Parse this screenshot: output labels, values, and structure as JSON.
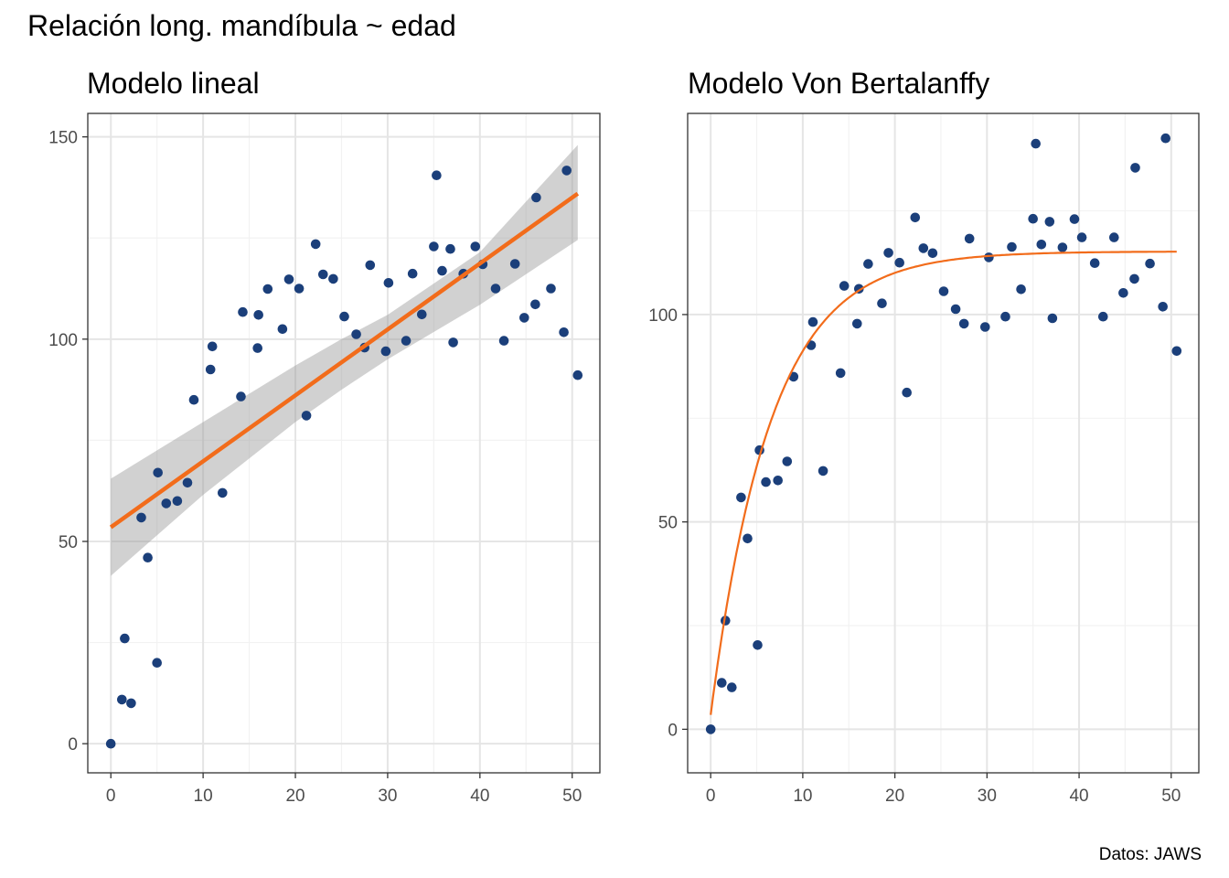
{
  "figure": {
    "title": "Relación long. mandíbula ~ edad",
    "caption": "Datos: JAWS"
  },
  "colors": {
    "points": "#1b3f7a",
    "fit_line": "#f26c1b",
    "ci_band": "#999999",
    "grid_major": "#e5e5e5",
    "grid_minor": "#f2f2f2",
    "panel_border": "#333333",
    "tick_text": "#4d4d4d"
  },
  "chart_data": [
    {
      "type": "scatter",
      "title": "Modelo lineal",
      "xlabel": "",
      "ylabel": "",
      "xlim": [
        -2.5,
        53
      ],
      "ylim": [
        -7.2,
        155.8
      ],
      "xticks": [
        0,
        10,
        20,
        30,
        40,
        50
      ],
      "yticks": [
        0,
        50,
        100,
        150
      ],
      "grid": true,
      "points": [
        [
          0,
          0
        ],
        [
          1.2,
          10.9
        ],
        [
          1.5,
          26
        ],
        [
          2.2,
          10
        ],
        [
          3.3,
          55.9
        ],
        [
          4,
          46
        ],
        [
          5,
          20
        ],
        [
          5.1,
          67
        ],
        [
          6,
          59.4
        ],
        [
          7.2,
          60
        ],
        [
          8.3,
          64.5
        ],
        [
          9,
          85
        ],
        [
          10.8,
          92.5
        ],
        [
          11,
          98.2
        ],
        [
          12.1,
          62
        ],
        [
          14.1,
          85.8
        ],
        [
          14.3,
          106.7
        ],
        [
          15.9,
          97.8
        ],
        [
          16,
          106
        ],
        [
          17,
          112.4
        ],
        [
          18.6,
          102.5
        ],
        [
          19.3,
          114.8
        ],
        [
          20.4,
          112.5
        ],
        [
          21.2,
          81.1
        ],
        [
          22.2,
          123.5
        ],
        [
          23,
          116
        ],
        [
          24.1,
          114.9
        ],
        [
          25.3,
          105.6
        ],
        [
          26.6,
          101.2
        ],
        [
          27.5,
          97.9
        ],
        [
          28.1,
          118.3
        ],
        [
          29.8,
          97
        ],
        [
          30.1,
          113.9
        ],
        [
          32,
          99.6
        ],
        [
          32.7,
          116.2
        ],
        [
          33.7,
          106.1
        ],
        [
          35,
          122.9
        ],
        [
          35.3,
          140.5
        ],
        [
          35.9,
          116.9
        ],
        [
          36.8,
          122.3
        ],
        [
          37.1,
          99.2
        ],
        [
          38.2,
          116.2
        ],
        [
          39.5,
          122.9
        ],
        [
          40.3,
          118.5
        ],
        [
          41.7,
          112.5
        ],
        [
          42.6,
          99.6
        ],
        [
          43.8,
          118.6
        ],
        [
          44.8,
          105.3
        ],
        [
          46,
          108.6
        ],
        [
          46.1,
          135
        ],
        [
          47.7,
          112.5
        ],
        [
          49.1,
          101.7
        ],
        [
          49.4,
          141.7
        ],
        [
          50.6,
          91.1
        ]
      ],
      "fit": {
        "method": "linear",
        "intercept": 53.5,
        "slope": 1.63,
        "x_range": [
          0,
          50.6
        ]
      },
      "ci_band": {
        "x": [
          0,
          10,
          20,
          25,
          30,
          40,
          50.6
        ],
        "lower": [
          41.5,
          61.5,
          79.5,
          87.5,
          95,
          108.5,
          124.5
        ],
        "upper": [
          65.5,
          79.5,
          93.5,
          100,
          106,
          121.5,
          148
        ]
      }
    },
    {
      "type": "scatter",
      "title": "Modelo Von Bertalanffy",
      "xlabel": "",
      "ylabel": "",
      "xlim": [
        -2.5,
        53
      ],
      "ylim": [
        -10.5,
        148.5
      ],
      "xticks": [
        0,
        10,
        20,
        30,
        40,
        50
      ],
      "yticks": [
        0,
        50,
        100
      ],
      "grid": true,
      "points": [
        [
          0,
          0
        ],
        [
          1.2,
          11.2
        ],
        [
          1.6,
          26.2
        ],
        [
          2.3,
          10.1
        ],
        [
          3.3,
          55.9
        ],
        [
          4,
          46
        ],
        [
          5.1,
          20.3
        ],
        [
          5.3,
          67.3
        ],
        [
          6,
          59.6
        ],
        [
          7.3,
          60
        ],
        [
          8.3,
          64.6
        ],
        [
          9,
          85
        ],
        [
          10.9,
          92.6
        ],
        [
          11.1,
          98.2
        ],
        [
          12.2,
          62.3
        ],
        [
          14.1,
          85.9
        ],
        [
          14.5,
          106.9
        ],
        [
          15.9,
          97.8
        ],
        [
          16.1,
          106.2
        ],
        [
          17.1,
          112.2
        ],
        [
          18.6,
          102.7
        ],
        [
          19.3,
          114.9
        ],
        [
          20.5,
          112.5
        ],
        [
          21.3,
          81.2
        ],
        [
          22.2,
          123.4
        ],
        [
          23.1,
          116
        ],
        [
          24.1,
          114.8
        ],
        [
          25.3,
          105.6
        ],
        [
          26.6,
          101.3
        ],
        [
          27.5,
          97.8
        ],
        [
          28.1,
          118.3
        ],
        [
          29.8,
          97
        ],
        [
          30.2,
          113.8
        ],
        [
          32,
          99.5
        ],
        [
          32.7,
          116.3
        ],
        [
          33.7,
          106.1
        ],
        [
          35,
          123.1
        ],
        [
          35.3,
          141.2
        ],
        [
          35.9,
          116.9
        ],
        [
          36.8,
          122.4
        ],
        [
          37.1,
          99.1
        ],
        [
          38.2,
          116.2
        ],
        [
          39.5,
          123
        ],
        [
          40.3,
          118.6
        ],
        [
          41.7,
          112.4
        ],
        [
          42.6,
          99.5
        ],
        [
          43.8,
          118.6
        ],
        [
          44.8,
          105.2
        ],
        [
          46,
          108.6
        ],
        [
          46.1,
          135.4
        ],
        [
          47.7,
          112.3
        ],
        [
          49.1,
          101.9
        ],
        [
          49.4,
          142.5
        ],
        [
          50.6,
          91.2
        ]
      ],
      "fit": {
        "method": "von_bertalanffy",
        "Linf": 115.2,
        "K": 0.1538,
        "t0": -0.2,
        "x_range": [
          0,
          50.6
        ]
      }
    }
  ]
}
